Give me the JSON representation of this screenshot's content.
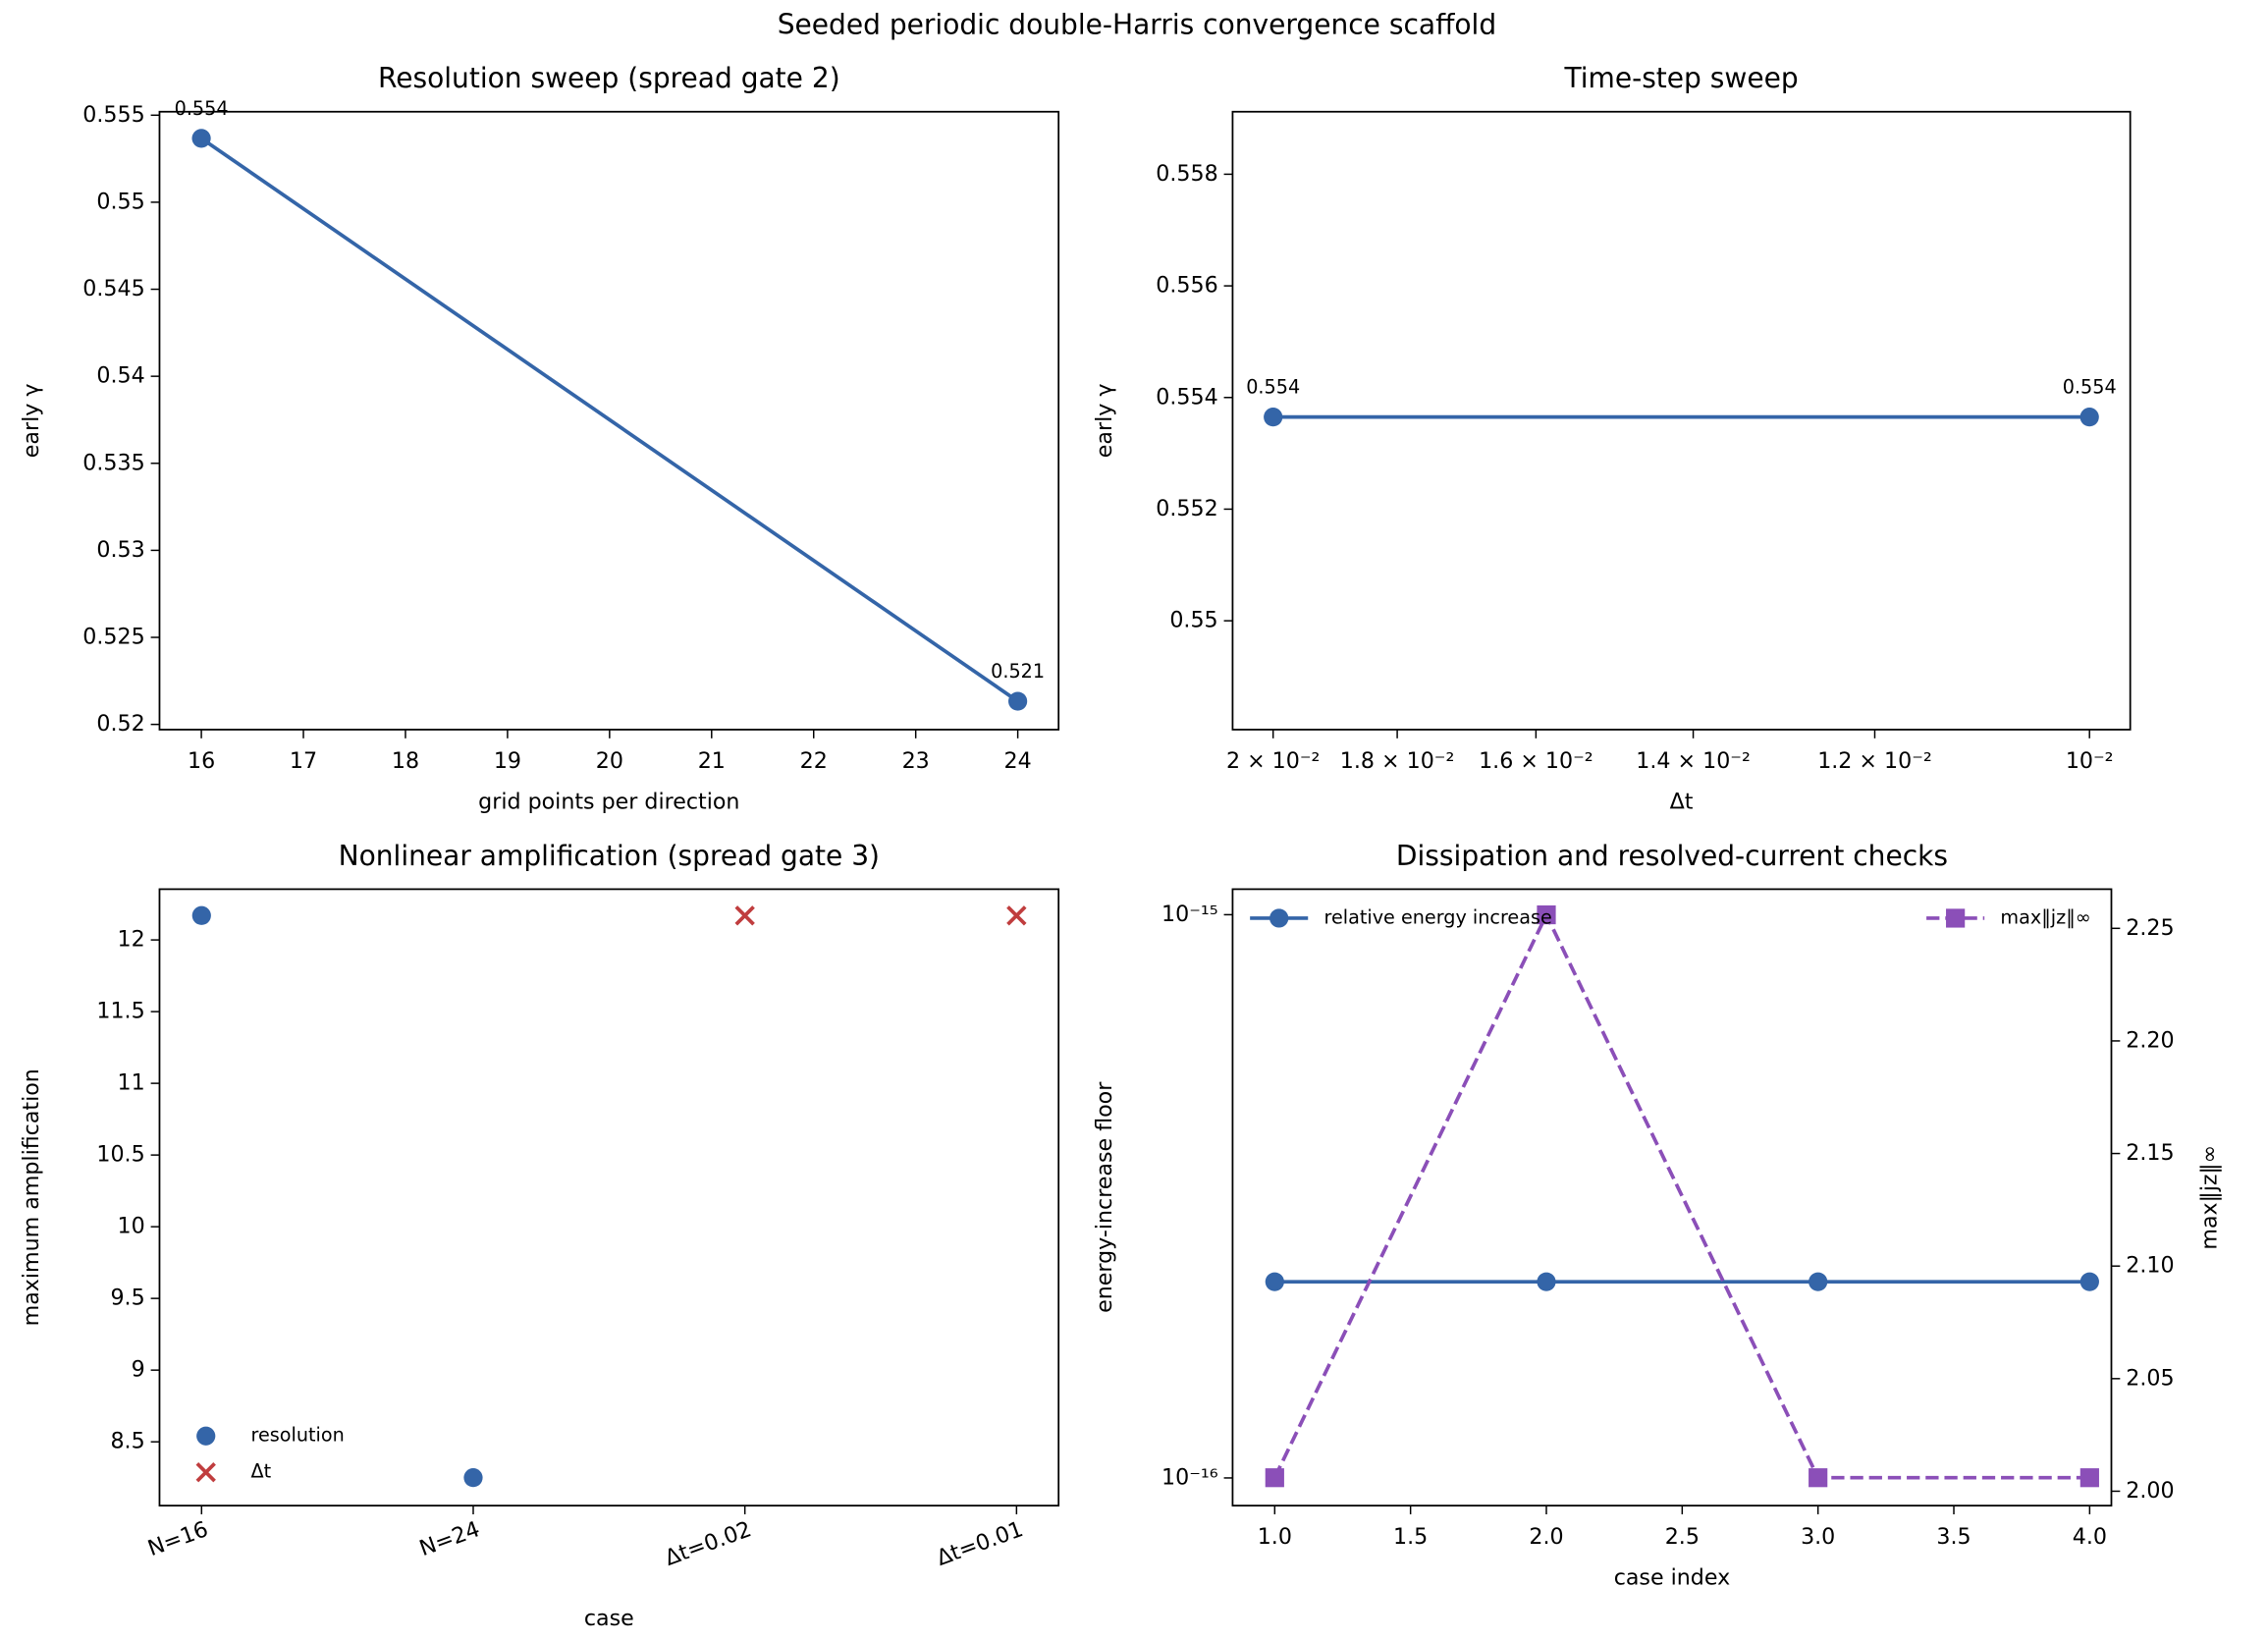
{
  "title": "Seeded periodic double-Harris convergence scaffold",
  "chart_data": [
    {
      "type": "line",
      "title": "Resolution sweep (spread gate 2)",
      "xlabel": "grid points per direction",
      "ylabel": "early γ",
      "x": [
        16,
        24
      ],
      "values": [
        0.55367,
        0.52133
      ],
      "value_labels": [
        "0.554",
        "0.521"
      ],
      "color": "#3465a8",
      "xlim": [
        15.59,
        24.4
      ],
      "xticks": [
        16,
        17,
        18,
        19,
        20,
        21,
        22,
        23,
        24
      ],
      "ylim": [
        0.5197,
        0.5552
      ],
      "yticks": [
        0.52,
        0.525,
        0.53,
        0.535,
        0.54,
        0.545,
        0.55,
        0.555
      ]
    },
    {
      "type": "line",
      "title": "Time-step sweep",
      "xlabel": "Δt",
      "ylabel": "early γ",
      "x": [
        0.02,
        0.01
      ],
      "values": [
        0.55365,
        0.55365
      ],
      "value_labels": [
        "0.554",
        "0.554"
      ],
      "color": "#3465a8",
      "xscale": "log",
      "xlim": [
        0.0207,
        0.00966
      ],
      "xticks": [
        {
          "value": 0.02,
          "label": "2 × 10⁻²"
        },
        {
          "value": 0.018,
          "label": "1.8 × 10⁻²"
        },
        {
          "value": 0.016,
          "label": "1.6 × 10⁻²"
        },
        {
          "value": 0.014,
          "label": "1.4 × 10⁻²"
        },
        {
          "value": 0.012,
          "label": "1.2 × 10⁻²"
        },
        {
          "value": 0.01,
          "label": "10⁻²"
        }
      ],
      "ylim": [
        0.54805,
        0.55912
      ],
      "yticks": [
        0.55,
        0.552,
        0.554,
        0.556,
        0.558
      ]
    },
    {
      "type": "scatter",
      "title": "Nonlinear amplification (spread gate 3)",
      "xlabel": "case",
      "ylabel": "maximum amplification",
      "categories": [
        "N=16",
        "N=24",
        "Δt=0.02",
        "Δt=0.01"
      ],
      "series": [
        {
          "name": "resolution",
          "color": "#3465a8",
          "marker": "o",
          "values": [
            12.17,
            8.25,
            null,
            null
          ]
        },
        {
          "name": "Δt",
          "color": "#c03d3e",
          "marker": "x",
          "values": [
            null,
            null,
            12.17,
            12.17
          ]
        }
      ],
      "legend_loc": "lower left",
      "ylim": [
        8.055,
        12.354
      ],
      "yticks": [
        8.5,
        9,
        9.5,
        10,
        10.5,
        11,
        11.5,
        12
      ]
    },
    {
      "type": "line",
      "title": "Dissipation and resolved-current checks",
      "xlabel": "case index",
      "ylabel": "energy-increase floor",
      "y2label": "max‖jz‖∞",
      "x": [
        1,
        2,
        3,
        4
      ],
      "series": [
        {
          "name": "relative energy increase",
          "color": "#3465a8",
          "marker": "o",
          "values": [
            2.23e-16,
            2.23e-16,
            2.23e-16,
            2.23e-16
          ]
        },
        {
          "name": "max‖jz‖∞",
          "color": "#8b4fb8",
          "marker": "s",
          "linestyle": "dashed",
          "axis": "y2",
          "values": [
            2.006,
            2.256,
            2.006,
            2.006
          ]
        }
      ],
      "legend_loc": "upper left",
      "y2_legend_loc": "upper right",
      "xlim": [
        0.845,
        4.08
      ],
      "xticks": [
        {
          "value": 1,
          "label": "1.0"
        },
        1.5,
        {
          "value": 2,
          "label": "2.0"
        },
        2.5,
        {
          "value": 3,
          "label": "3.0"
        },
        3.5,
        {
          "value": 4,
          "label": "4.0"
        }
      ],
      "yscale": "log",
      "ylim": [
        8.93e-17,
        1.11e-15
      ],
      "yticks": [
        {
          "value": 1e-16,
          "label": "10⁻¹⁶"
        },
        {
          "value": 1e-15,
          "label": "10⁻¹⁵"
        }
      ],
      "y2lim": [
        1.9936,
        2.2674
      ],
      "y2ticks": [
        {
          "value": 2,
          "label": "2.00"
        },
        2.05,
        {
          "value": 2.1,
          "label": "2.10"
        },
        2.15,
        {
          "value": 2.2,
          "label": "2.20"
        },
        2.25
      ]
    }
  ]
}
